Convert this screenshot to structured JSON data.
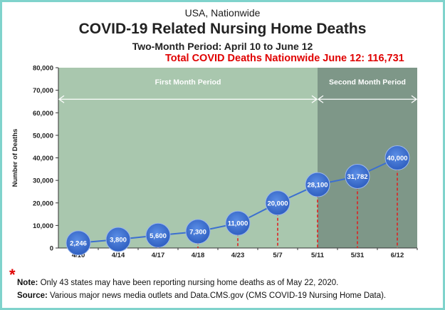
{
  "header": {
    "top_line": "USA, Nationwide",
    "title": "COVID-19 Related Nursing Home Deaths",
    "subtitle": "Two-Month Period:  April 10 to June 12",
    "total_line": "Total COVID Deaths Nationwide June 12:  116,731"
  },
  "footer": {
    "asterisk": "*",
    "note_label": "Note:",
    "note_text": "Only 43 states may have been reporting nursing home deaths as of May 22, 2020.",
    "source_label": "Source:",
    "source_text": "Various major news media outlets and Data.CMS.gov (CMS COVID-19 Nursing Home Data)."
  },
  "colors": {
    "first_period_bg": "#a9c7ae",
    "second_period_bg": "#7e9788",
    "marker": "#3b6fd0",
    "line": "#3b6fd0",
    "drop_line": "#e02020",
    "total_text": "#e00000",
    "border": "#7fd3cc"
  },
  "chart_data": {
    "type": "line",
    "title": "COVID-19 Related Nursing Home Deaths",
    "ylabel": "Number of Deaths",
    "xlabel": "",
    "ylim": [
      0,
      80000
    ],
    "yticks": [
      0,
      10000,
      20000,
      30000,
      40000,
      50000,
      60000,
      70000,
      80000
    ],
    "ytick_labels": [
      "0",
      "10,000",
      "20,000",
      "30,000",
      "40,000",
      "50,000",
      "60,000",
      "70,000",
      "80,000"
    ],
    "categories": [
      "4/10",
      "4/14",
      "4/17",
      "4/18",
      "4/23",
      "5/7",
      "5/11",
      "5/31",
      "6/12"
    ],
    "values": [
      2246,
      3800,
      5600,
      7300,
      11000,
      20000,
      28100,
      31782,
      40000
    ],
    "data_labels": [
      "2,246",
      "3,800",
      "5,600",
      "7,300",
      "11,000",
      "20,000",
      "28,100",
      "31,782",
      "40,000"
    ],
    "periods": [
      {
        "label": "First Month Period",
        "from": "4/10",
        "to": "5/11"
      },
      {
        "label": "Second Month Period",
        "from": "5/11",
        "to": "6/12"
      }
    ],
    "grid": false,
    "legend": "none"
  }
}
